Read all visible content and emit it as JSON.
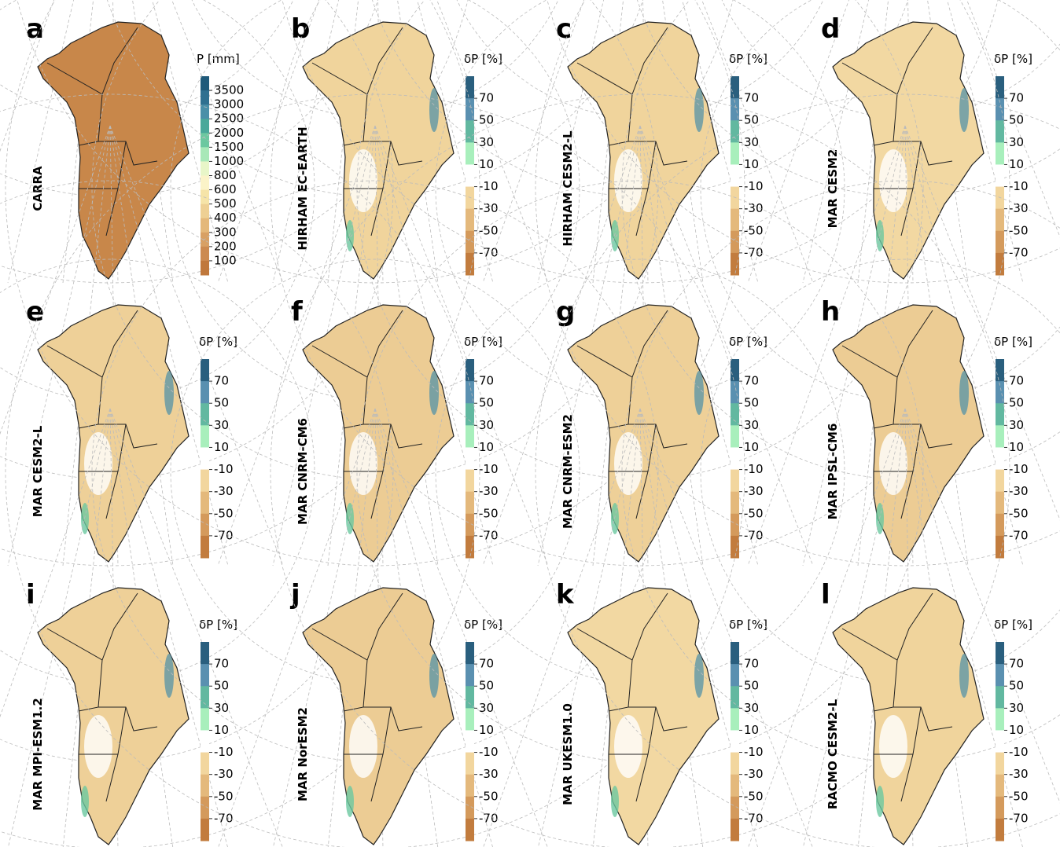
{
  "panels": [
    {
      "letter": "a",
      "label": "CARRA",
      "colorbar": {
        "title": "P [mm]",
        "ticks": [
          3500,
          3000,
          2500,
          2000,
          1500,
          1000,
          800,
          600,
          500,
          400,
          300,
          200,
          100
        ]
      }
    },
    {
      "letter": "b",
      "label": "HIRHAM EC-EARTH",
      "colorbar": {
        "title": "δP [%]",
        "ticks": [
          70,
          50,
          30,
          10,
          -10,
          -30,
          -50,
          -70
        ]
      }
    },
    {
      "letter": "c",
      "label": "HIRHAM CESM2-L",
      "colorbar": {
        "title": "δP [%]",
        "ticks": [
          70,
          50,
          30,
          10,
          -10,
          -30,
          -50,
          -70
        ]
      }
    },
    {
      "letter": "d",
      "label": "MAR CESM2",
      "colorbar": {
        "title": "δP [%]",
        "ticks": [
          70,
          50,
          30,
          10,
          -10,
          -30,
          -50,
          -70
        ]
      }
    },
    {
      "letter": "e",
      "label": "MAR CESM2-L",
      "colorbar": {
        "title": "δP [%]",
        "ticks": [
          70,
          50,
          30,
          10,
          -10,
          -30,
          -50,
          -70
        ]
      }
    },
    {
      "letter": "f",
      "label": "MAR CNRM-CM6",
      "colorbar": {
        "title": "δP [%]",
        "ticks": [
          70,
          50,
          30,
          10,
          -10,
          -30,
          -50,
          -70
        ]
      }
    },
    {
      "letter": "g",
      "label": "MAR CNRM-ESM2",
      "colorbar": {
        "title": "δP [%]",
        "ticks": [
          70,
          50,
          30,
          10,
          -10,
          -30,
          -50,
          -70
        ]
      }
    },
    {
      "letter": "h",
      "label": "MAR IPSL-CM6",
      "colorbar": {
        "title": "δP [%]",
        "ticks": [
          70,
          50,
          30,
          10,
          -10,
          -30,
          -50,
          -70
        ]
      }
    },
    {
      "letter": "i",
      "label": "MAR MPI-ESM1.2",
      "colorbar": {
        "title": "δP [%]",
        "ticks": [
          70,
          50,
          30,
          10,
          -10,
          -30,
          -50,
          -70
        ]
      }
    },
    {
      "letter": "j",
      "label": "MAR NorESM2",
      "colorbar": {
        "title": "δP [%]",
        "ticks": [
          70,
          50,
          30,
          10,
          -10,
          -30,
          -50,
          -70
        ]
      }
    },
    {
      "letter": "k",
      "label": "MAR UKESM1.0",
      "colorbar": {
        "title": "δP [%]",
        "ticks": [
          70,
          50,
          30,
          10,
          -10,
          -30,
          -50,
          -70
        ]
      }
    },
    {
      "letter": "l",
      "label": "RACMO CESM2-L",
      "colorbar": {
        "title": "δP [%]",
        "ticks": [
          70,
          50,
          30,
          10,
          -10,
          -30,
          -50,
          -70
        ]
      }
    }
  ]
}
